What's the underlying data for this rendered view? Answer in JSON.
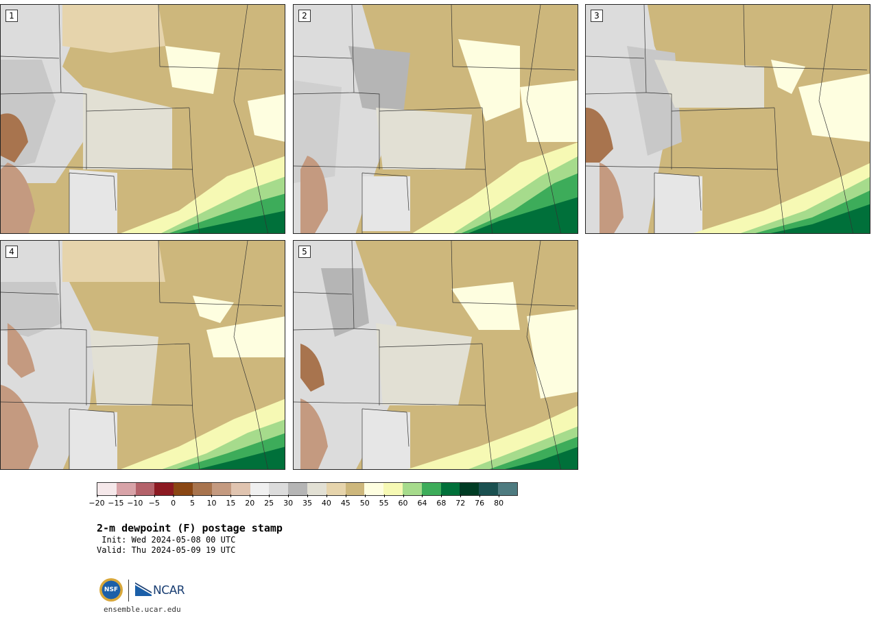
{
  "panels": [
    {
      "label": "1"
    },
    {
      "label": "2"
    },
    {
      "label": "3"
    },
    {
      "label": "4"
    },
    {
      "label": "5"
    }
  ],
  "legend": {
    "colors": [
      "#f5e8ea",
      "#d8a3a8",
      "#b4626a",
      "#8c1a22",
      "#8a4714",
      "#a8744e",
      "#c49a80",
      "#e0c4b0",
      "#f0f0f0",
      "#dcdcdc",
      "#b5b5b5",
      "#e2e0d4",
      "#e6d4ac",
      "#cdb77c",
      "#fefee0",
      "#f6f9b4",
      "#a6db8c",
      "#3dac5a",
      "#00703a",
      "#003c24",
      "#1a5050",
      "#4e7b80"
    ],
    "ticks": [
      "−20",
      "−15",
      "−10",
      "−5",
      "0",
      "5",
      "10",
      "15",
      "20",
      "25",
      "30",
      "35",
      "40",
      "45",
      "50",
      "55",
      "60",
      "64",
      "68",
      "72",
      "76",
      "80"
    ]
  },
  "title": "2-m dewpoint (F) postage stamp",
  "init": " Init: Wed 2024-05-08 00 UTC",
  "valid": "Valid: Thu 2024-05-09 19 UTC",
  "logos": {
    "nsf": "NSF",
    "ncar": "NCAR"
  },
  "site": "ensemble.ucar.edu"
}
